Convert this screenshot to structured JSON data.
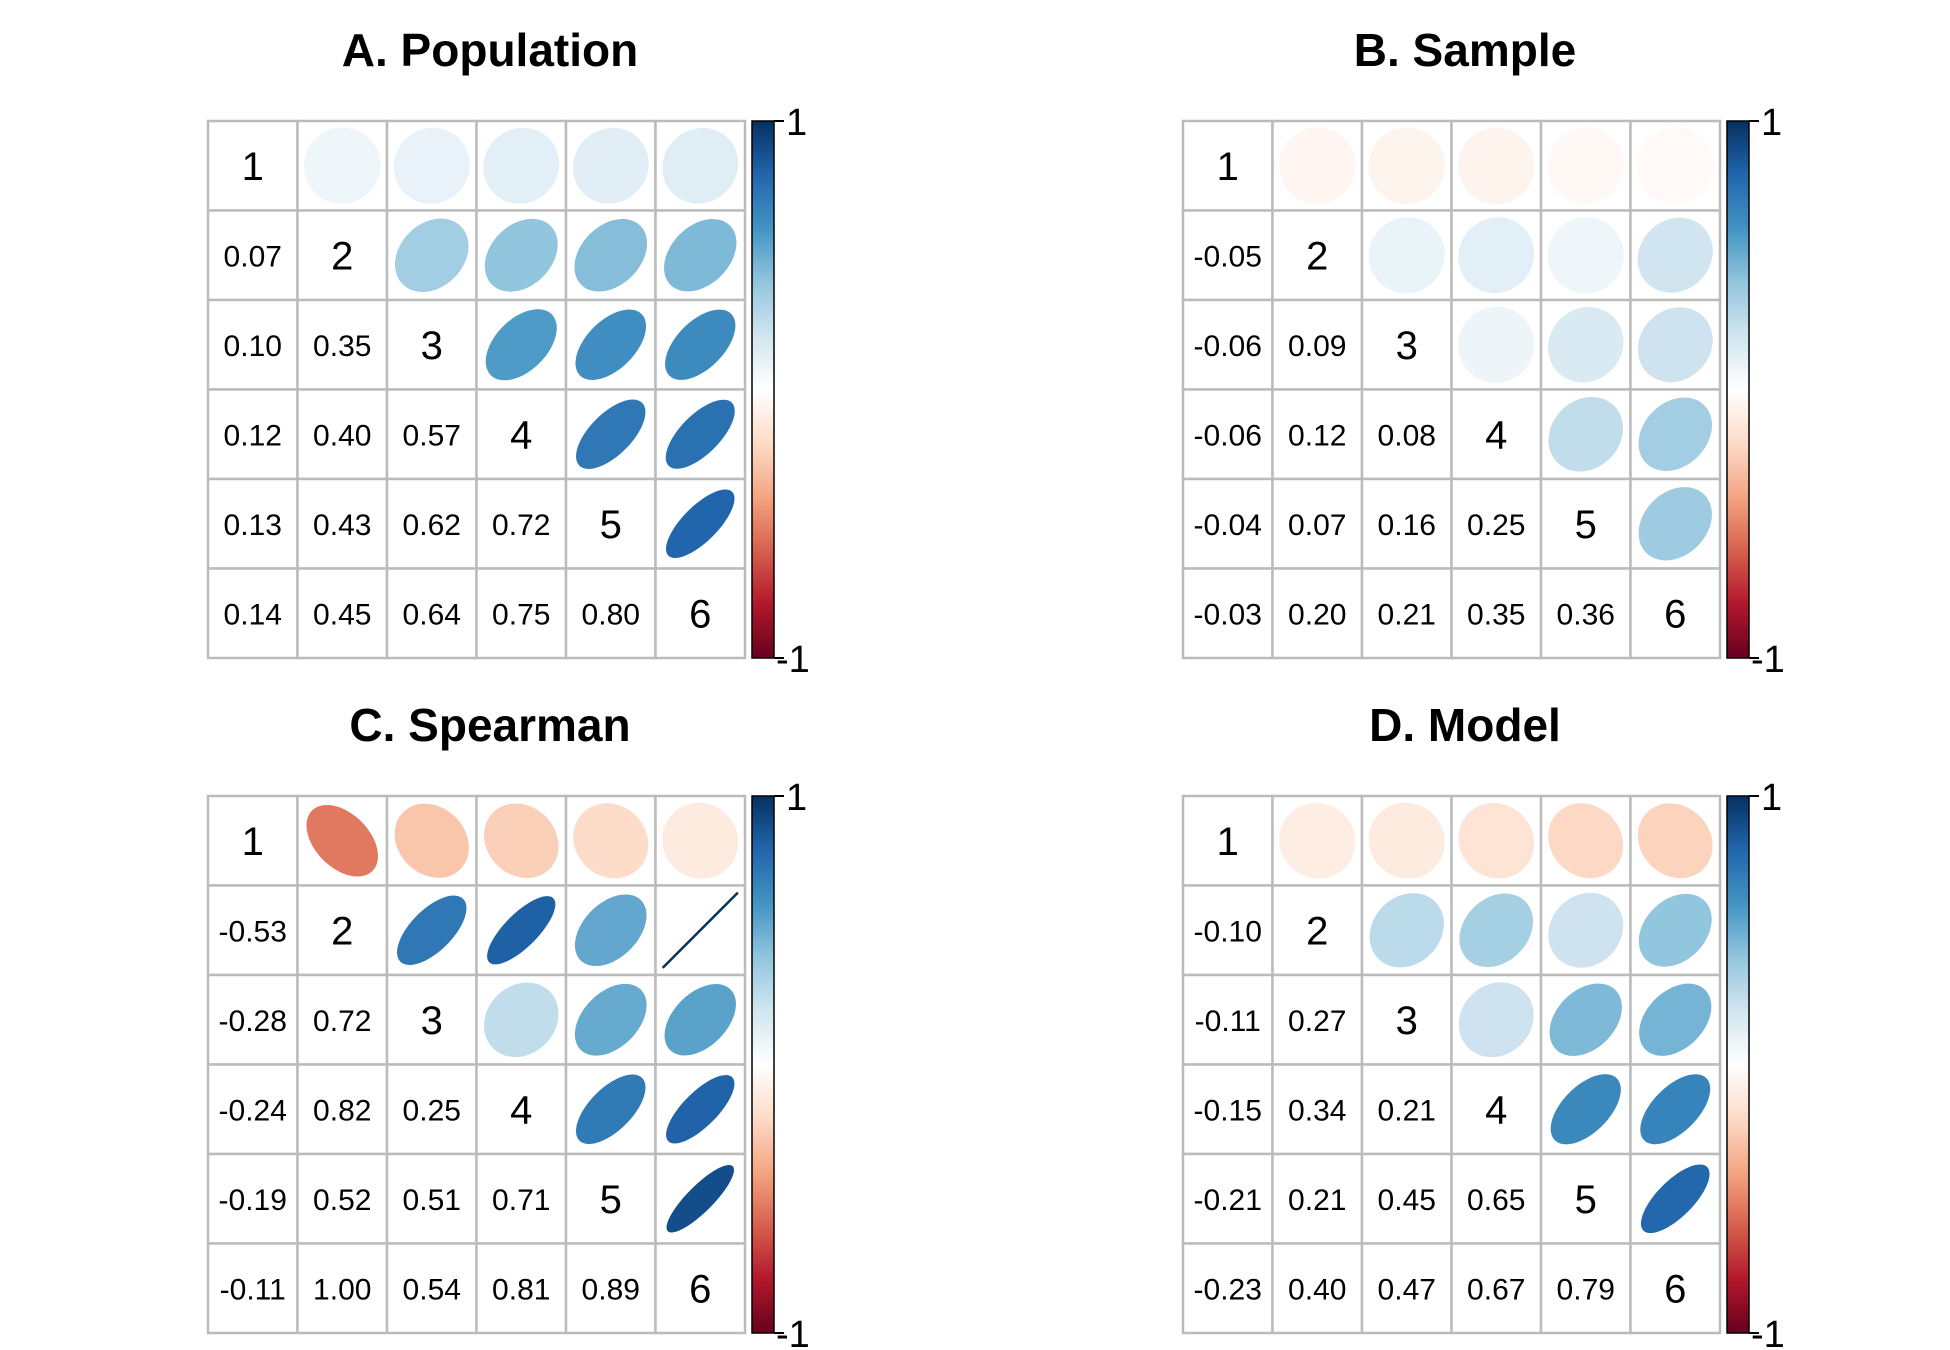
{
  "chart_data": [
    {
      "type": "heatmap",
      "title": "A. Population",
      "labels": [
        "1",
        "2",
        "3",
        "4",
        "5",
        "6"
      ],
      "matrix": [
        [
          1.0,
          0.07,
          0.1,
          0.12,
          0.13,
          0.14
        ],
        [
          0.07,
          1.0,
          0.35,
          0.4,
          0.43,
          0.45
        ],
        [
          0.1,
          0.35,
          1.0,
          0.57,
          0.62,
          0.64
        ],
        [
          0.12,
          0.4,
          0.57,
          1.0,
          0.72,
          0.75
        ],
        [
          0.13,
          0.43,
          0.62,
          0.72,
          1.0,
          0.8
        ],
        [
          0.14,
          0.45,
          0.64,
          0.75,
          0.8,
          1.0
        ]
      ],
      "lower_labels": [
        [
          "0.07"
        ],
        [
          "0.10",
          "0.35"
        ],
        [
          "0.12",
          "0.40",
          "0.57"
        ],
        [
          "0.13",
          "0.43",
          "0.62",
          "0.72"
        ],
        [
          "0.14",
          "0.45",
          "0.64",
          "0.75",
          "0.80"
        ]
      ],
      "colorbar": {
        "max_label": "1",
        "min_label": "-1",
        "range": [
          -1,
          1
        ]
      }
    },
    {
      "type": "heatmap",
      "title": "B. Sample",
      "labels": [
        "1",
        "2",
        "3",
        "4",
        "5",
        "6"
      ],
      "matrix": [
        [
          1.0,
          -0.05,
          -0.06,
          -0.06,
          -0.04,
          -0.03
        ],
        [
          -0.05,
          1.0,
          0.09,
          0.12,
          0.07,
          0.2
        ],
        [
          -0.06,
          0.09,
          1.0,
          0.08,
          0.16,
          0.21
        ],
        [
          -0.06,
          0.12,
          0.08,
          1.0,
          0.25,
          0.35
        ],
        [
          -0.04,
          0.07,
          0.16,
          0.25,
          1.0,
          0.36
        ],
        [
          -0.03,
          0.2,
          0.21,
          0.35,
          0.36,
          1.0
        ]
      ],
      "lower_labels": [
        [
          "-0.05"
        ],
        [
          "-0.06",
          "0.09"
        ],
        [
          "-0.06",
          "0.12",
          "0.08"
        ],
        [
          "-0.04",
          "0.07",
          "0.16",
          "0.25"
        ],
        [
          "-0.03",
          "0.20",
          "0.21",
          "0.35",
          "0.36"
        ]
      ],
      "colorbar": {
        "max_label": "1",
        "min_label": "-1",
        "range": [
          -1,
          1
        ]
      }
    },
    {
      "type": "heatmap",
      "title": "C. Spearman",
      "labels": [
        "1",
        "2",
        "3",
        "4",
        "5",
        "6"
      ],
      "matrix": [
        [
          1.0,
          -0.53,
          -0.28,
          -0.24,
          -0.19,
          -0.11
        ],
        [
          -0.53,
          1.0,
          0.72,
          0.82,
          0.52,
          1.0
        ],
        [
          -0.28,
          0.72,
          1.0,
          0.25,
          0.51,
          0.54
        ],
        [
          -0.24,
          0.82,
          0.25,
          1.0,
          0.71,
          0.81
        ],
        [
          -0.19,
          0.52,
          0.51,
          0.71,
          1.0,
          0.89
        ],
        [
          -0.11,
          1.0,
          0.54,
          0.81,
          0.89,
          1.0
        ]
      ],
      "lower_labels": [
        [
          "-0.53"
        ],
        [
          "-0.28",
          "0.72"
        ],
        [
          "-0.24",
          "0.82",
          "0.25"
        ],
        [
          "-0.19",
          "0.52",
          "0.51",
          "0.71"
        ],
        [
          "-0.11",
          "1.00",
          "0.54",
          "0.81",
          "0.89"
        ]
      ],
      "colorbar": {
        "max_label": "1",
        "min_label": "-1",
        "range": [
          -1,
          1
        ]
      }
    },
    {
      "type": "heatmap",
      "title": "D. Model",
      "labels": [
        "1",
        "2",
        "3",
        "4",
        "5",
        "6"
      ],
      "matrix": [
        [
          1.0,
          -0.1,
          -0.11,
          -0.15,
          -0.21,
          -0.23
        ],
        [
          -0.1,
          1.0,
          0.27,
          0.34,
          0.21,
          0.4
        ],
        [
          -0.11,
          0.27,
          1.0,
          0.21,
          0.45,
          0.47
        ],
        [
          -0.15,
          0.34,
          0.21,
          1.0,
          0.65,
          0.67
        ],
        [
          -0.21,
          0.21,
          0.45,
          0.65,
          1.0,
          0.79
        ],
        [
          -0.23,
          0.4,
          0.47,
          0.67,
          0.79,
          1.0
        ]
      ],
      "lower_labels": [
        [
          "-0.10"
        ],
        [
          "-0.11",
          "0.27"
        ],
        [
          "-0.15",
          "0.34",
          "0.21"
        ],
        [
          "-0.21",
          "0.21",
          "0.45",
          "0.65"
        ],
        [
          "-0.23",
          "0.40",
          "0.47",
          "0.67",
          "0.79"
        ]
      ],
      "colorbar": {
        "max_label": "1",
        "min_label": "-1",
        "range": [
          -1,
          1
        ]
      }
    }
  ],
  "colors": {
    "scale": [
      "#67001F",
      "#B2182B",
      "#D6604D",
      "#F4A582",
      "#FDDBC7",
      "#FFFFFF",
      "#D1E5F0",
      "#92C5DE",
      "#4393C3",
      "#2166AC",
      "#053061"
    ],
    "grid": "#BBBBBB"
  }
}
